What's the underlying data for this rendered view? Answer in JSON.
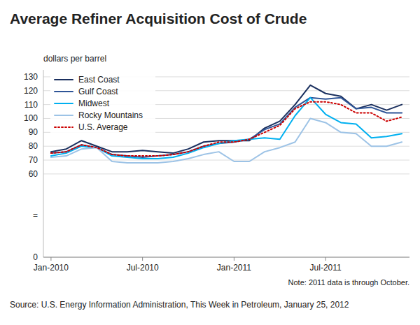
{
  "chart_data": {
    "type": "line",
    "title": "Average Refiner Acquisition Cost of Crude",
    "y_label": "dollars per barrel",
    "annotations": [
      "Note: 2011 data is through October.",
      "=",
      "Source: U.S. Energy Information Administration, This Week in Petroleum, January 25, 2012"
    ],
    "categories": [
      "Jan-2010",
      null,
      null,
      null,
      null,
      null,
      "Jul-2010",
      null,
      null,
      null,
      null,
      null,
      "Jan-2011",
      null,
      null,
      null,
      null,
      null,
      "Jul-2011",
      null,
      null,
      null,
      null,
      null
    ],
    "series": [
      {
        "name": "East Coast",
        "color": "#1a2f5e",
        "line_style": "solid",
        "values": [
          76,
          78,
          84,
          80,
          76,
          76,
          77,
          76,
          75,
          78,
          83,
          84,
          84,
          84,
          93,
          98,
          110,
          124,
          118,
          116,
          107,
          110,
          106,
          110
        ]
      },
      {
        "name": "Gulf Coast",
        "color": "#2f5597",
        "line_style": "solid",
        "values": [
          75,
          76,
          81,
          79,
          74,
          73,
          72,
          73,
          74,
          76,
          80,
          82,
          83,
          85,
          92,
          96,
          108,
          115,
          114,
          115,
          107,
          108,
          104,
          104
        ]
      },
      {
        "name": "Midwest",
        "color": "#00b0f0",
        "line_style": "solid",
        "values": [
          73,
          75,
          80,
          79,
          73,
          72,
          71,
          71,
          72,
          75,
          79,
          82,
          84,
          85,
          86,
          85,
          102,
          115,
          103,
          97,
          96,
          86,
          87,
          89
        ]
      },
      {
        "name": "Rocky Mountains",
        "color": "#9dc3e6",
        "line_style": "solid",
        "values": [
          72,
          73,
          78,
          79,
          69,
          68,
          68,
          68,
          69,
          71,
          74,
          76,
          69,
          69,
          76,
          79,
          83,
          100,
          97,
          90,
          89,
          80,
          80,
          83
        ]
      },
      {
        "name": "U.S. Average",
        "color": "#cc0000",
        "line_style": "dotted",
        "values": [
          75,
          76,
          81,
          79,
          74,
          73,
          73,
          73,
          74,
          76,
          80,
          83,
          83,
          85,
          90,
          95,
          107,
          112,
          112,
          110,
          104,
          104,
          98,
          101
        ]
      }
    ],
    "ylim": [
      0,
      135
    ],
    "yticks": [
      0,
      60,
      70,
      80,
      90,
      100,
      110,
      120,
      130
    ],
    "grid": true,
    "legend": "upper left"
  }
}
